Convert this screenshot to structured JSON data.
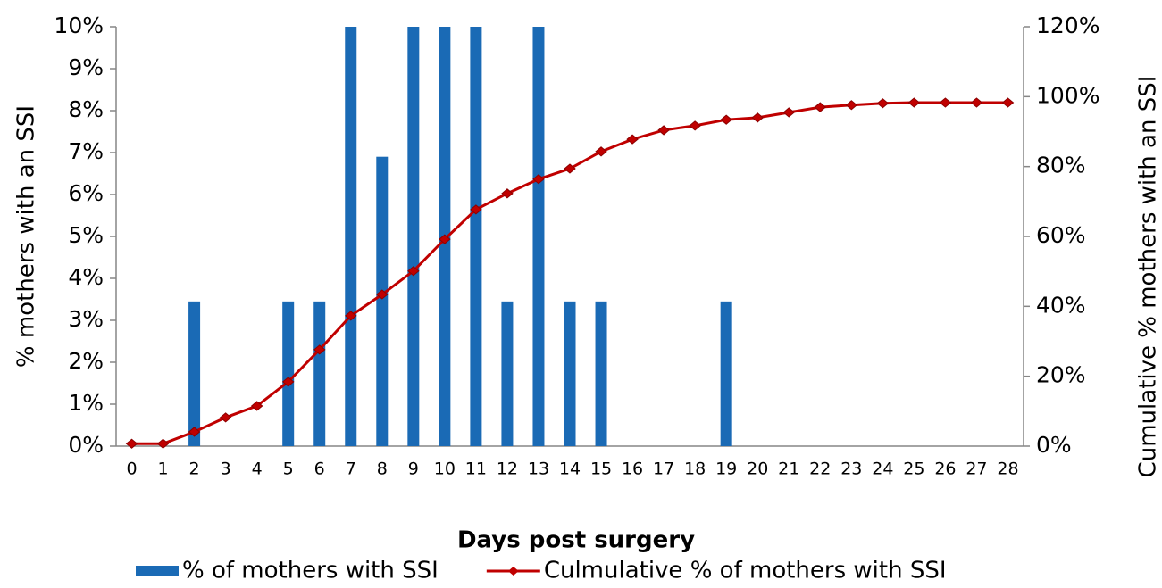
{
  "chart_data": {
    "type": "bar",
    "x_label": "Days post surgery",
    "y_label": "% mothers with an SSI",
    "y2_label": "Cumulative % mothers with an SSI",
    "categories": [
      "0",
      "1",
      "2",
      "3",
      "4",
      "5",
      "6",
      "7",
      "8",
      "9",
      "10",
      "11",
      "12",
      "13",
      "14",
      "15",
      "16",
      "17",
      "18",
      "19",
      "20",
      "21",
      "22",
      "23",
      "24",
      "25",
      "26",
      "27",
      "28"
    ],
    "series": [
      {
        "name": "% of mothers with SSI",
        "type": "bar",
        "color": "#1a6ab5",
        "values": [
          0,
          0,
          3.45,
          0,
          0,
          3.45,
          3.45,
          10.3,
          6.9,
          10.3,
          10.3,
          10.3,
          3.45,
          10.3,
          3.45,
          3.45,
          0,
          0,
          0,
          3.45,
          0,
          0,
          0,
          0,
          0,
          0,
          0,
          0,
          0
        ]
      },
      {
        "name": "Culmulative % of mothers with SSI",
        "type": "line",
        "axis": "y2",
        "color": "#c00000",
        "values": [
          0.7,
          0.7,
          4.1,
          8.2,
          11.5,
          18.4,
          27.6,
          37.3,
          43.4,
          50.1,
          59.2,
          67.7,
          72.3,
          76.4,
          79.4,
          84.3,
          87.8,
          90.4,
          91.7,
          93.4,
          94.0,
          95.5,
          97.0,
          97.6,
          98.1,
          98.3,
          98.3,
          98.3,
          98.3
        ]
      }
    ],
    "ylim": [
      0,
      10
    ],
    "yticks": [
      {
        "value": 0,
        "label": "0%"
      },
      {
        "value": 1,
        "label": "1%"
      },
      {
        "value": 2,
        "label": "2%"
      },
      {
        "value": 3,
        "label": "3%"
      },
      {
        "value": 4,
        "label": "4%"
      },
      {
        "value": 5,
        "label": "5%"
      },
      {
        "value": 6,
        "label": "6%"
      },
      {
        "value": 7,
        "label": "7%"
      },
      {
        "value": 8,
        "label": "8%"
      },
      {
        "value": 9,
        "label": "9%"
      },
      {
        "value": 10,
        "label": "10%"
      }
    ],
    "y2lim": [
      0,
      120
    ],
    "y2ticks": [
      {
        "value": 0,
        "label": "0%"
      },
      {
        "value": 20,
        "label": "20%"
      },
      {
        "value": 40,
        "label": "40%"
      },
      {
        "value": 60,
        "label": "60%"
      },
      {
        "value": 80,
        "label": "80%"
      },
      {
        "value": 100,
        "label": "100%"
      },
      {
        "value": 120,
        "label": "120%"
      }
    ],
    "legend": "bottom"
  }
}
